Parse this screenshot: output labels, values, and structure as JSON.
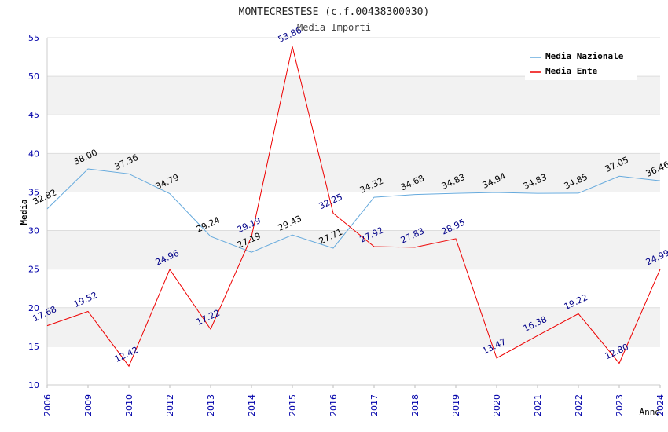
{
  "chart_data": {
    "type": "line",
    "title": "MONTECRESTESE (c.f.00438300030)",
    "subtitle": "Media Importi",
    "xlabel": "Anno",
    "ylabel": "Media",
    "ylim": [
      10,
      55
    ],
    "yticks": [
      "10",
      "15",
      "20",
      "25",
      "30",
      "35",
      "40",
      "45",
      "50",
      "55"
    ],
    "categories": [
      "2006",
      "2009",
      "2010",
      "2012",
      "2013",
      "2014",
      "2015",
      "2016",
      "2017",
      "2018",
      "2019",
      "2020",
      "2021",
      "2022",
      "2023",
      "2024"
    ],
    "legend_position": "top-right",
    "series": [
      {
        "name": "Media Nazionale",
        "color": "#66aadd",
        "label_color": "#000000",
        "values": [
          32.82,
          38.0,
          37.36,
          34.79,
          29.24,
          27.19,
          29.43,
          27.71,
          34.32,
          34.68,
          34.83,
          34.94,
          34.83,
          34.85,
          37.05,
          36.46
        ],
        "labels": [
          "32.82",
          "38.00",
          "37.36",
          "34.79",
          "29.24",
          "27.19",
          "29.43",
          "27.71",
          "34.32",
          "34.68",
          "34.83",
          "34.94",
          "34.83",
          "34.85",
          "37.05",
          "36.46"
        ]
      },
      {
        "name": "Media Ente",
        "color": "#ee0000",
        "label_color": "#000088",
        "values": [
          17.68,
          19.52,
          12.42,
          24.96,
          17.22,
          29.19,
          53.86,
          32.25,
          27.92,
          27.83,
          28.95,
          13.47,
          16.38,
          19.22,
          12.8,
          24.99
        ],
        "labels": [
          "17.68",
          "19.52",
          "12.42",
          "24.96",
          "17.22",
          "29.19",
          "53.86",
          "32.25",
          "27.92",
          "27.83",
          "28.95",
          "13.47",
          "16.38",
          "19.22",
          "12.80",
          "24.99"
        ]
      }
    ]
  }
}
